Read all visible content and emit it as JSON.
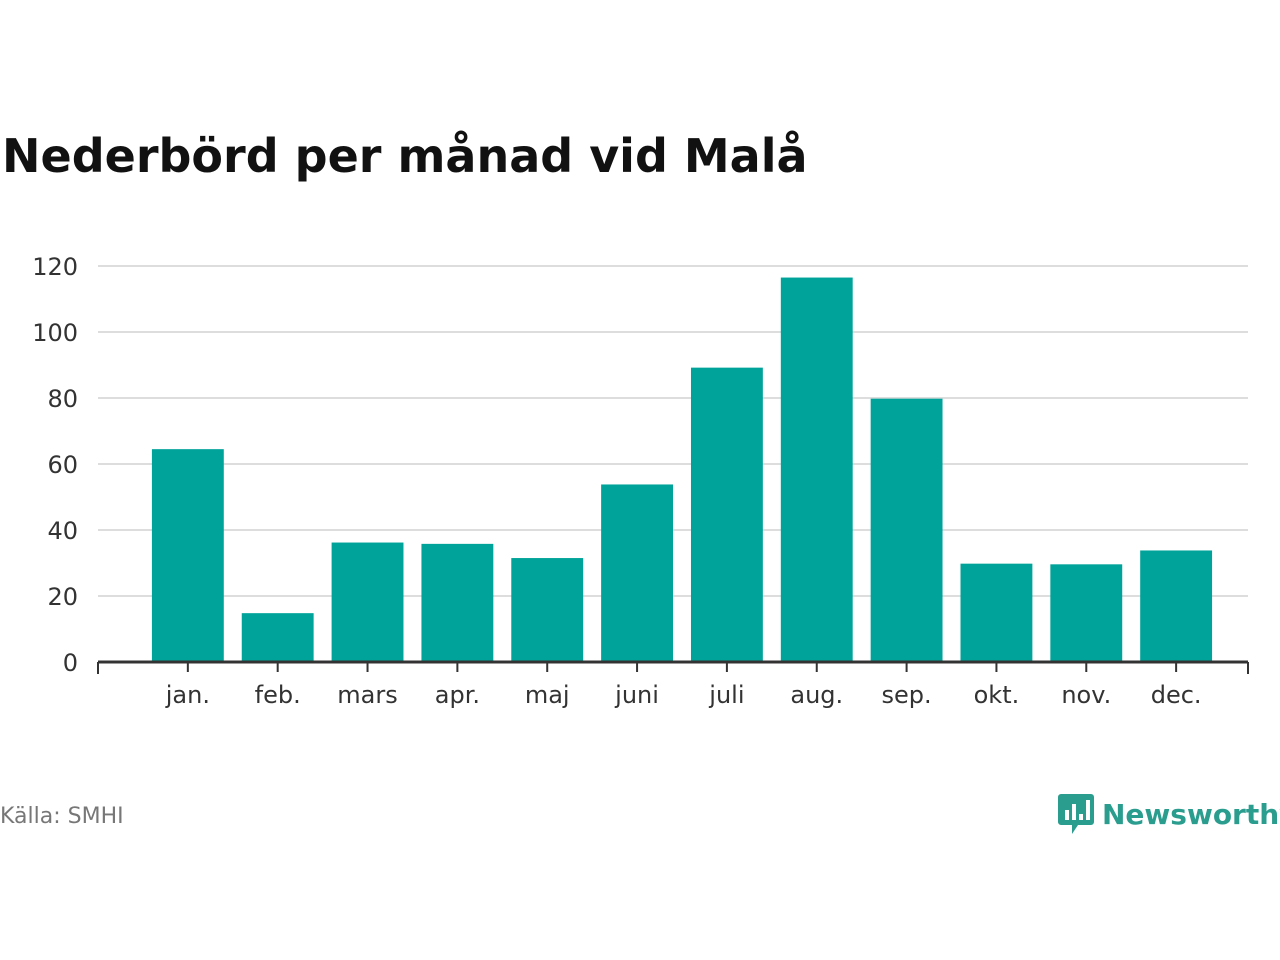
{
  "header": {
    "title": "Nederbörd per månad vid Malå"
  },
  "footer": {
    "source": "Källa: SMHI",
    "brand": "Newsworthy",
    "brand_icon": "newsworthy-logo-icon"
  },
  "colors": {
    "bar": "#00a39a",
    "grid": "#dddddd",
    "axis": "#333333",
    "brand": "#2a9d8f"
  },
  "chart_data": {
    "type": "bar",
    "title": "Nederbörd per månad vid Malå",
    "xlabel": "",
    "ylabel": "",
    "categories": [
      "jan.",
      "feb.",
      "mars",
      "apr.",
      "maj",
      "juni",
      "juli",
      "aug.",
      "sep.",
      "okt.",
      "nov.",
      "dec."
    ],
    "values": [
      64.5,
      14.8,
      36.2,
      35.8,
      31.5,
      53.8,
      89.2,
      116.5,
      79.8,
      29.8,
      29.6,
      33.8
    ],
    "ylim": [
      0,
      120
    ],
    "yticks": [
      0,
      20,
      40,
      60,
      80,
      100,
      120
    ],
    "grid": true,
    "legend": "none"
  }
}
